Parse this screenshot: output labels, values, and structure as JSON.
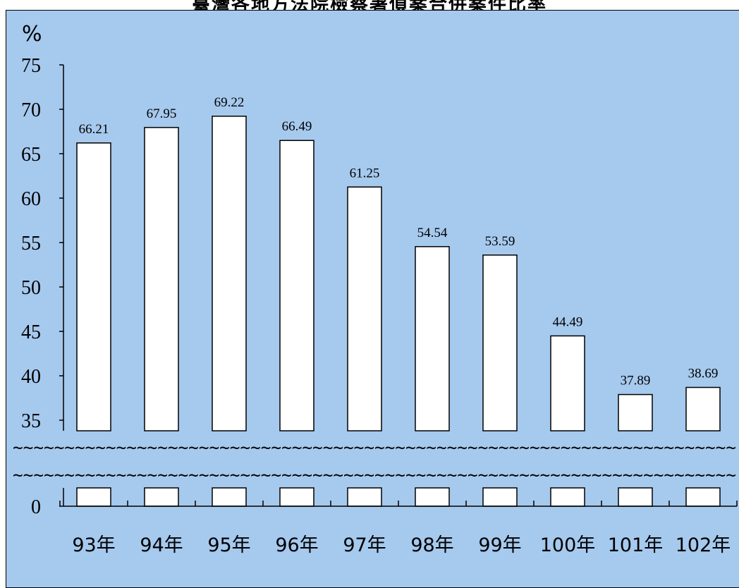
{
  "chart_data": {
    "type": "bar",
    "title": "臺灣各地方法院檢察署偵案合併案件比率",
    "ylabel": "%",
    "categories": [
      "93年",
      "94年",
      "95年",
      "96年",
      "97年",
      "98年",
      "99年",
      "100年",
      "101年",
      "102年"
    ],
    "values": [
      66.21,
      67.95,
      69.22,
      66.49,
      61.25,
      54.54,
      53.59,
      44.49,
      37.89,
      38.69
    ],
    "data_labels": [
      "66.21",
      "67.95",
      "69.22",
      "66.49",
      "61.25",
      "54.54",
      "53.59",
      "44.49",
      "37.89",
      "38.69"
    ],
    "y_ticks": [
      "75",
      "70",
      "65",
      "60",
      "55",
      "50",
      "45",
      "40",
      "35",
      "0"
    ],
    "ylim": [
      35,
      75
    ],
    "axis_break": true,
    "grid": false,
    "colors": {
      "background": "#a6c9ee",
      "bar_fill": "#ffffff",
      "bar_stroke": "#000000"
    }
  }
}
